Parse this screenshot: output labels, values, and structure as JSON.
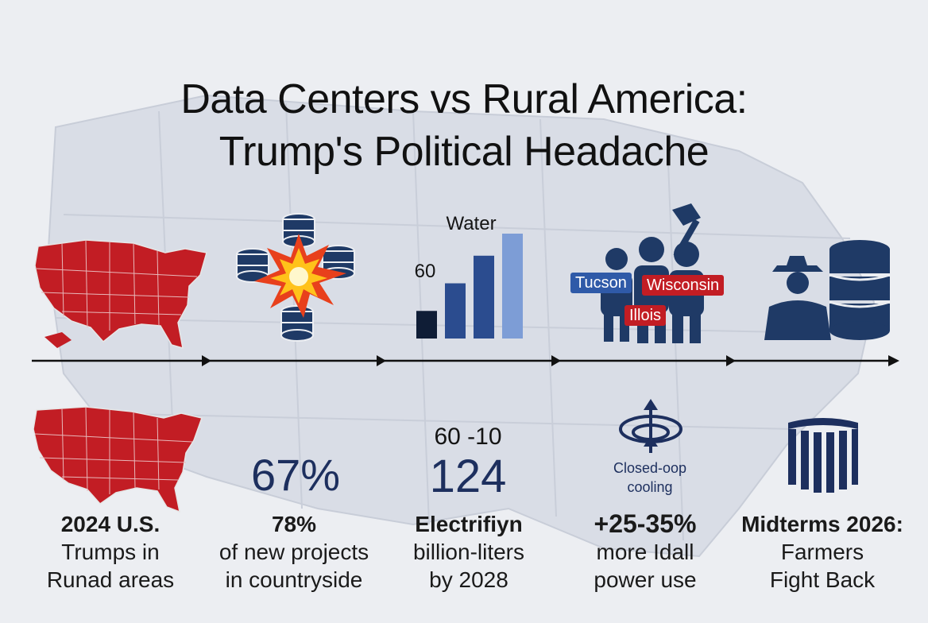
{
  "title": {
    "line1": "Data Centers vs Rural America:",
    "line2": "Trump's Political Headache"
  },
  "colors": {
    "map_red": "#c21d24",
    "navy": "#1d2f5e",
    "bar_dark": "#0f1d36",
    "bar_mid": "#2b4c8f",
    "bar_light": "#7d9dd6",
    "background": "#eceef2"
  },
  "icons": {
    "us_map_top": "us-map-red-icon",
    "servers_explosion": "server-explosion-icon",
    "bar_chart": "water-bar-chart-icon",
    "protesters": "protesters-icon",
    "farmer_server": "farmer-server-icon",
    "us_map_bottom": "us-map-red-icon",
    "cooling": "closed-loop-cooling-icon",
    "capitol": "capitol-column-icon"
  },
  "water_chart": {
    "label": "Water",
    "value_label": "60",
    "values": [
      1,
      2,
      3,
      3.8
    ]
  },
  "protest_tags": [
    "Tucson",
    "Wisconsin",
    "Illois"
  ],
  "cooling_label_line1": "Closed-oop",
  "cooling_label_line2": "cooling",
  "stats": [
    {
      "caption_line1": "2024 U.S.",
      "caption_line2": "Trumps in",
      "caption_line3": "Runad areas"
    },
    {
      "big": "67%",
      "caption_line1": "78%",
      "caption_line2": "of new projects",
      "caption_line3": "in countryside"
    },
    {
      "top": "60 -10",
      "big": "124",
      "caption_line1": "Electrifiyn",
      "caption_line2": "billion-liters",
      "caption_line3": "by 2028"
    },
    {
      "caption_line1": "+25-35%",
      "caption_line2": "more Idall",
      "caption_line3": "power use"
    },
    {
      "caption_line1": "Midterms 2026:",
      "caption_line2": "Farmers",
      "caption_line3": "Fight Back"
    }
  ]
}
